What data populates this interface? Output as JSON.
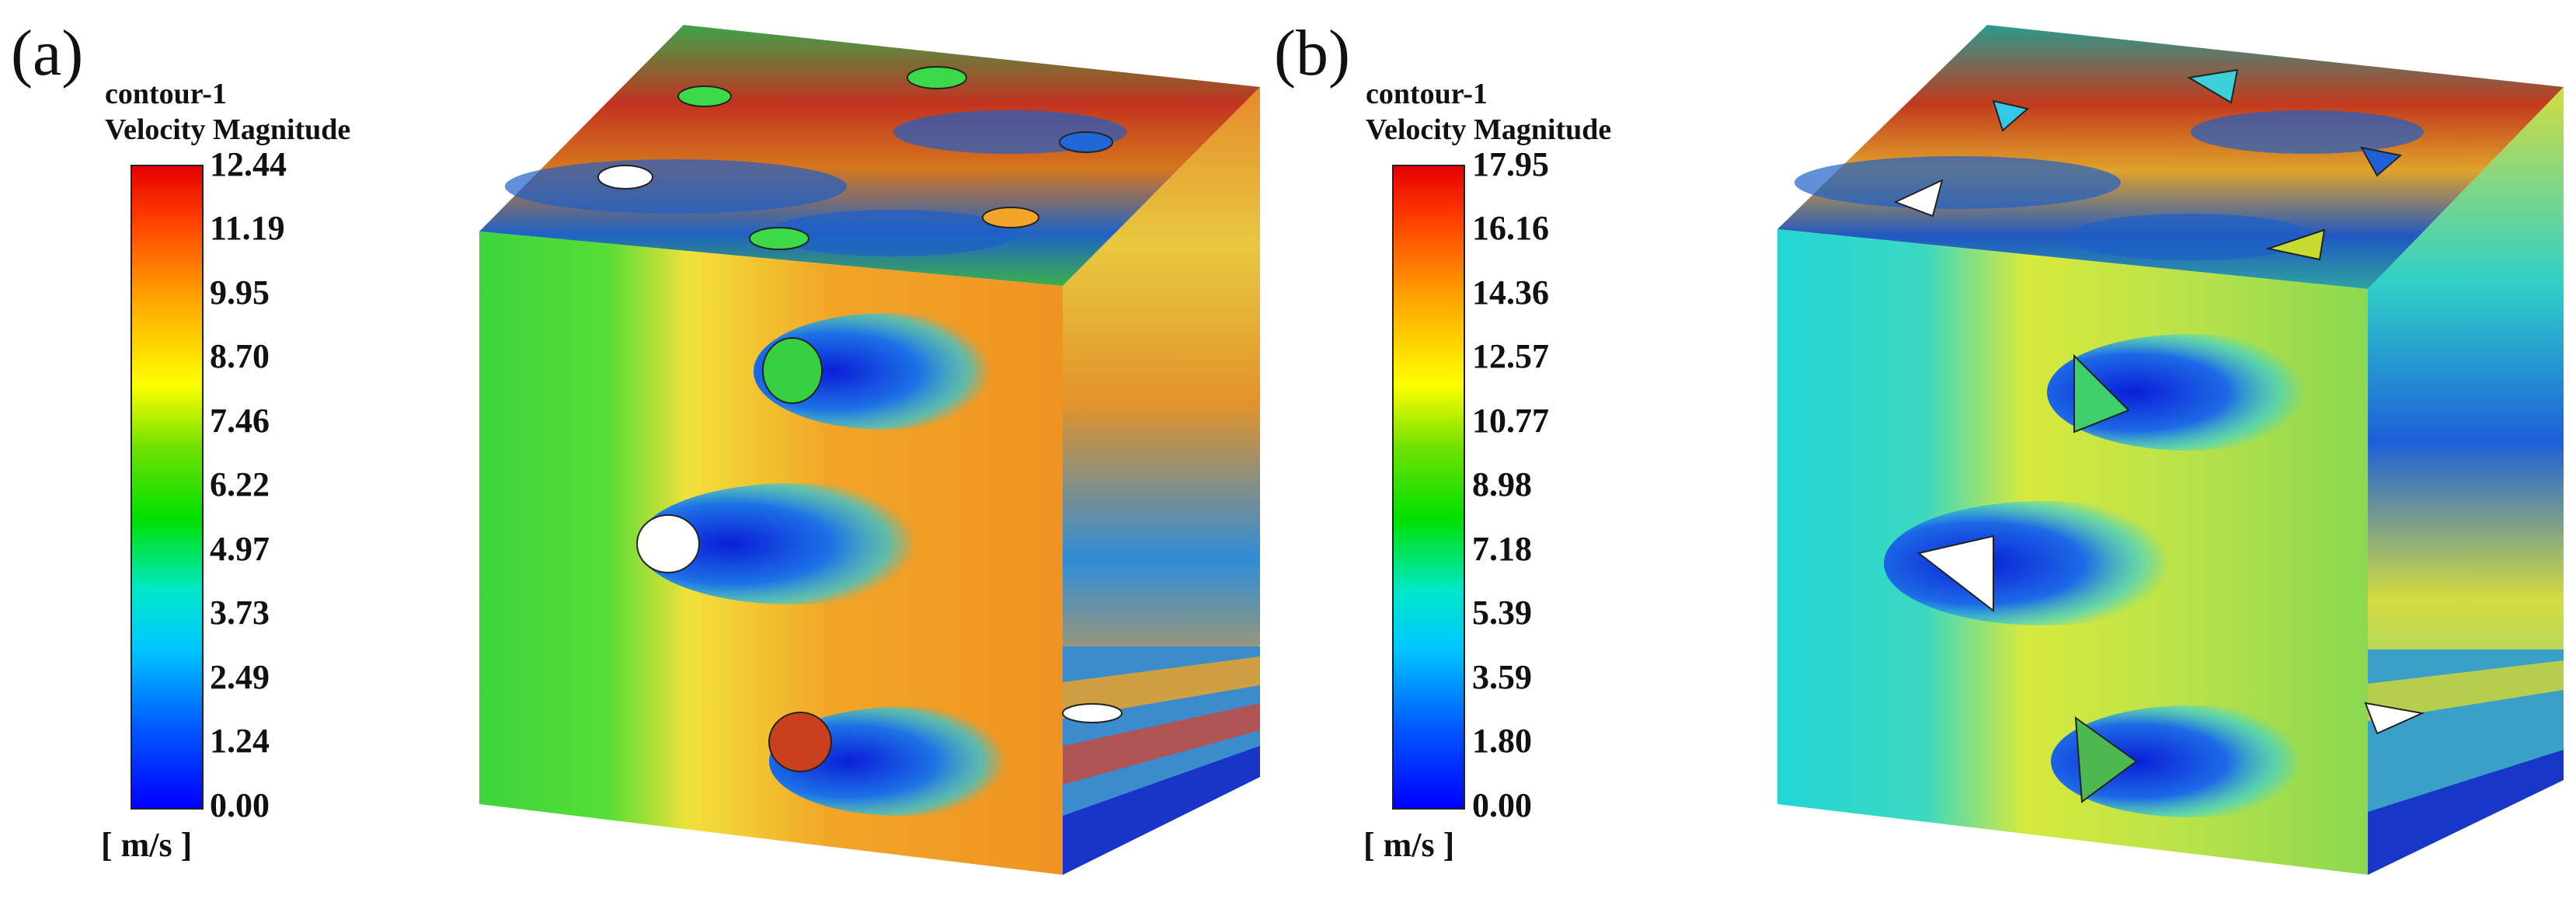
{
  "panels": [
    {
      "label": "(a)",
      "legend": {
        "title_line1": "contour-1",
        "title_line2": "Velocity Magnitude",
        "ticks": [
          "12.44",
          "11.19",
          "9.95",
          "8.70",
          "7.46",
          "6.22",
          "4.97",
          "3.73",
          "2.49",
          "1.24",
          "0.00"
        ],
        "unit": "[ m/s ]"
      },
      "obstacle_shape": "circle"
    },
    {
      "label": "(b)",
      "legend": {
        "title_line1": "contour-1",
        "title_line2": "Velocity Magnitude",
        "ticks": [
          "17.95",
          "16.16",
          "14.36",
          "12.57",
          "10.77",
          "8.98",
          "7.18",
          "5.39",
          "3.59",
          "1.80",
          "0.00"
        ],
        "unit": "[ m/s ]"
      },
      "obstacle_shape": "triangle"
    }
  ],
  "colors": {
    "colormap": [
      "#0000ff",
      "#00c8ff",
      "#00e000",
      "#ffff00",
      "#ff3c00",
      "#e60000"
    ]
  }
}
